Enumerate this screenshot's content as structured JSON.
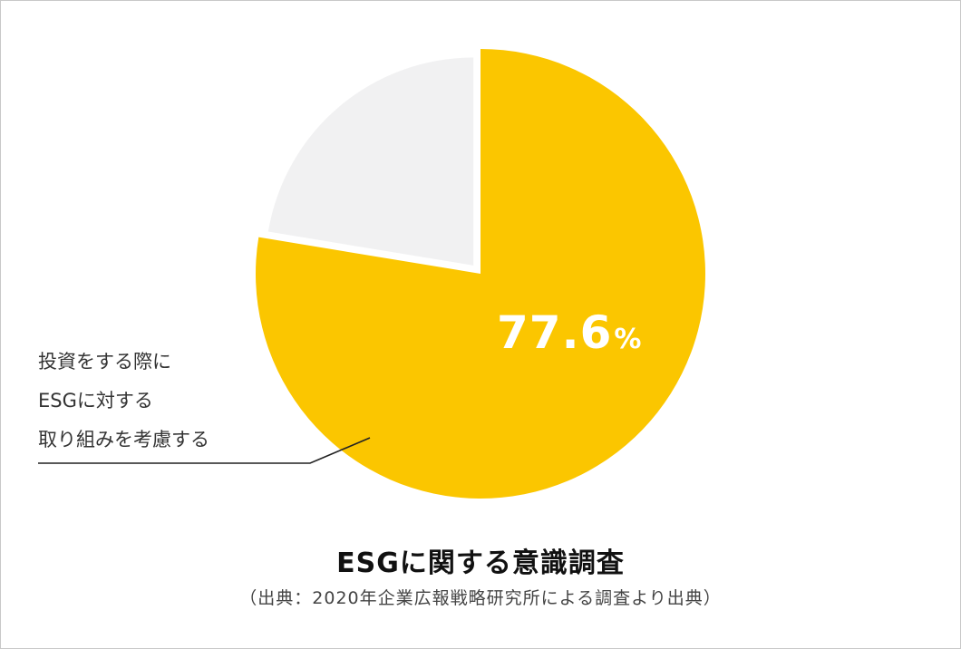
{
  "chart_data": {
    "type": "pie",
    "title": "ESGに関する意識調査",
    "source": "（出典：2020年企業広報戦略研究所による調査より出典）",
    "slices": [
      {
        "label_lines": [
          "投資をする際に",
          "ESGに対する",
          "取り組みを考慮する"
        ],
        "value": 77.6,
        "display_number": "77.6",
        "display_unit": "%",
        "color": "#fbc600"
      },
      {
        "label_lines": [],
        "value": 22.4,
        "color": "#f1f1f2"
      }
    ]
  }
}
